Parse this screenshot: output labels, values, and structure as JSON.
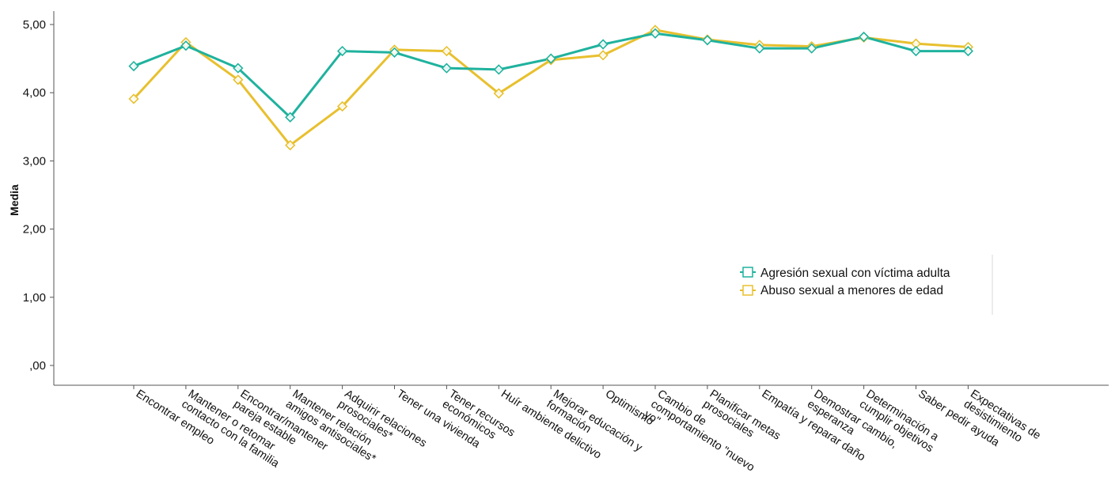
{
  "chart_data": {
    "type": "line",
    "title": "",
    "xlabel": "",
    "ylabel": "Media",
    "ylim": [
      0,
      5
    ],
    "y_ticks": [
      0,
      1,
      2,
      3,
      4,
      5
    ],
    "y_tick_labels": [
      ",00",
      "1,00",
      "2,00",
      "3,00",
      "4,00",
      "5,00"
    ],
    "grid": false,
    "legend_position": "center-right",
    "categories": [
      [
        "Encontrar empleo"
      ],
      [
        "Mantener o retomar",
        "contacto con la familia"
      ],
      [
        "Encontrar/mantener",
        "pareja estable"
      ],
      [
        "Mantener relación",
        "amigos antisociales*"
      ],
      [
        "Adquirir relaciones",
        "prosociales*"
      ],
      [
        "Tener una vivienda"
      ],
      [
        "Tener recursos",
        "económicos"
      ],
      [
        "Huír ambiente delictivo"
      ],
      [
        "Mejorar educación y",
        "formación"
      ],
      [
        "Optimismo"
      ],
      [
        "Cambio de",
        "comportamiento \"nuevo",
        "yo\""
      ],
      [
        "Planificar metas",
        "prosociales"
      ],
      [
        "Empatía y reparar daño"
      ],
      [
        "Demostrar cambio,",
        "esperanza"
      ],
      [
        "Determinación a",
        "cumplir objetivos"
      ],
      [
        "Saber pedir ayuda"
      ],
      [
        "Expectativas de",
        "desistimiento"
      ]
    ],
    "series": [
      {
        "name": "Agresión sexual con víctima adulta",
        "color": "#1fb29e",
        "values": [
          4.39,
          4.69,
          4.36,
          3.64,
          4.61,
          4.59,
          4.36,
          4.34,
          4.5,
          4.71,
          4.87,
          4.77,
          4.65,
          4.65,
          4.82,
          4.61,
          4.61
        ]
      },
      {
        "name": "Abuso sexual a menores de edad",
        "color": "#e8c02e",
        "values": [
          3.91,
          4.74,
          4.19,
          3.23,
          3.8,
          4.63,
          4.61,
          3.99,
          4.48,
          4.55,
          4.92,
          4.78,
          4.7,
          4.68,
          4.81,
          4.72,
          4.67
        ]
      }
    ]
  }
}
